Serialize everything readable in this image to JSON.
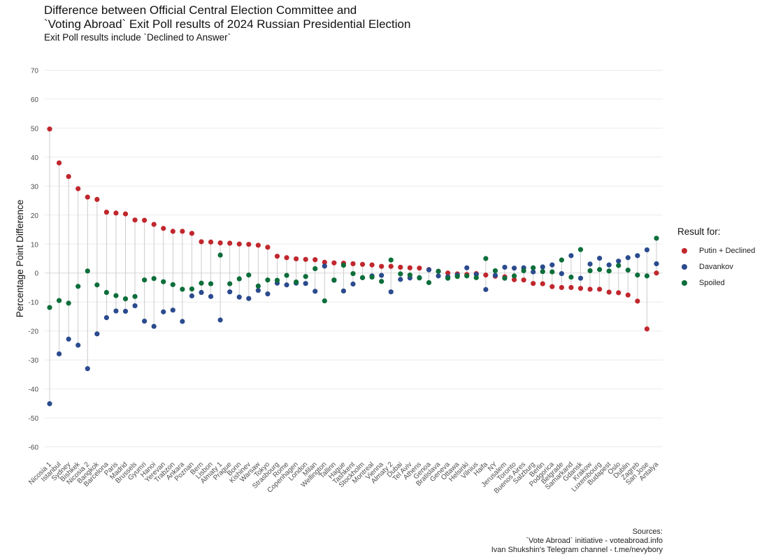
{
  "title_lines": [
    "Difference between Official Central Election Committee and",
    "`Voting Abroad` Exit Poll results of 2024 Russian Presidential Election"
  ],
  "subtitle": "Exit Poll results include `Declined to Answer`",
  "caption_lines": [
    "Sources:",
    "`Vote Abroad` initiative - voteabroad.info",
    "Ivan Shukshin's Telegram channel - t.me/nevybory"
  ],
  "chart_data": {
    "type": "scatter",
    "ylabel": "Percentage Point Difference",
    "xlabel": "",
    "ylim": [
      -63,
      73
    ],
    "yticks": [
      -60,
      -50,
      -40,
      -30,
      -20,
      -10,
      0,
      10,
      20,
      30,
      40,
      50,
      60,
      70
    ],
    "grid": true,
    "legend": {
      "title": "Result for:",
      "position": "right"
    },
    "colors": {
      "putin": "#c0272d",
      "davankov": "#2b4b8e",
      "spoiled": "#0d6e3a",
      "segment": "#cccccc",
      "grid": "#ebebeb"
    },
    "categories": [
      "Nicosia 1",
      "Istanbul",
      "Sydney",
      "Bishkek",
      "Nicosia 2",
      "Bangkok",
      "Barcelona",
      "Paris",
      "Madrid",
      "Brussels",
      "Gyumri",
      "Hanoi",
      "Yerevan",
      "Trabzon",
      "Ankara",
      "Poznan",
      "Bern",
      "Lisbon",
      "Almaty 1",
      "Prague",
      "Bonn",
      "Kishinev",
      "Warsaw",
      "Tokyo",
      "Strasbourg",
      "Rome",
      "Copenhagen",
      "London",
      "Milan",
      "Wellington",
      "Tallinn",
      "Hague",
      "Tashkent",
      "Stockholm",
      "Montreal",
      "Vienna",
      "Almaty 2",
      "Dubai",
      "Tel Aviv",
      "Athens",
      "Genoa",
      "Bratislava",
      "Geneva",
      "Ottawa",
      "Helsinki",
      "Vilnius",
      "Haifa",
      "NY",
      "Jerusalem",
      "Toronto",
      "Buenos Aires",
      "Salzburg",
      "Berlin",
      "Podgorica",
      "Belgrade",
      "Samarkand",
      "Gdansk",
      "Krakow",
      "Luxembourg",
      "Budapest",
      "Oslo",
      "Dublin",
      "Zagreb",
      "San Jose",
      "Antalya"
    ],
    "series": [
      {
        "name": "Putin + Declined",
        "key": "putin",
        "values": [
          49.7,
          38,
          33.3,
          29.1,
          26.2,
          25.4,
          21,
          20.7,
          20.4,
          18.3,
          18.2,
          16.8,
          15.4,
          14.4,
          14.4,
          13.7,
          10.8,
          10.7,
          10.4,
          10.3,
          10,
          9.9,
          9.6,
          8.9,
          5.8,
          5.3,
          4.9,
          4.7,
          4.6,
          3.7,
          3.5,
          3.4,
          3.2,
          3,
          2.8,
          2.3,
          2.3,
          2,
          1.8,
          1.7,
          1.2,
          0.6,
          0,
          -0.3,
          -0.5,
          -0.2,
          -0.7,
          -1.1,
          -1.3,
          -2.3,
          -2.4,
          -3.6,
          -3.7,
          -4.7,
          -5,
          -5,
          -5.3,
          -5.6,
          -5.6,
          -6.6,
          -6.8,
          -7.6,
          -9.7,
          -19.3,
          0
        ]
      },
      {
        "name": "Davankov",
        "key": "davankov",
        "values": [
          -45.1,
          -27.9,
          -22.8,
          -24.9,
          -33,
          -21,
          -15.4,
          -13.1,
          -13.2,
          -11.3,
          -16.6,
          -18.4,
          -13.4,
          -12.8,
          -16.7,
          -7.9,
          -6.7,
          -8.1,
          -16.2,
          -6.5,
          -8.3,
          -8.8,
          -6,
          -7.2,
          -3.5,
          -4.1,
          -3.5,
          -3.6,
          -6.3,
          2.4,
          -2.5,
          -6.2,
          -3.8,
          -1.6,
          -1,
          -0.8,
          -6.5,
          -2.2,
          -1.7,
          -1.6,
          1.1,
          -1,
          -1.3,
          -0.7,
          1.8,
          -0.5,
          -5.7,
          -0.8,
          2,
          1.7,
          1.8,
          0.4,
          2.1,
          2.8,
          -0.2,
          6,
          -1.8,
          3.1,
          5.1,
          2.8,
          4.1,
          5.3,
          6,
          8,
          3.2
        ]
      },
      {
        "name": "Spoiled",
        "key": "spoiled",
        "values": [
          -11.9,
          -9.5,
          -10.4,
          -4.6,
          0.7,
          -4.1,
          -6.7,
          -7.8,
          -8.9,
          -8.1,
          -2.4,
          -1.9,
          -3,
          -4,
          -5.6,
          -5.5,
          -3.5,
          -3.7,
          6.2,
          -3.7,
          -2,
          -0.7,
          -4.5,
          -2.4,
          -2.5,
          -0.8,
          -3.1,
          -1.2,
          1.5,
          -9.6,
          -2.4,
          2.7,
          -0.2,
          -1.6,
          -1.4,
          -2.9,
          4.5,
          -0.3,
          -0.7,
          -1.7,
          -3.3,
          0.6,
          -1.8,
          -1.2,
          -1,
          -1.6,
          5,
          0.8,
          -1.8,
          -1,
          0.8,
          1.8,
          0.5,
          0.4,
          4.5,
          -1.4,
          8.1,
          0.8,
          1.2,
          0.7,
          2.6,
          1,
          -0.7,
          -1,
          12
        ]
      }
    ]
  }
}
